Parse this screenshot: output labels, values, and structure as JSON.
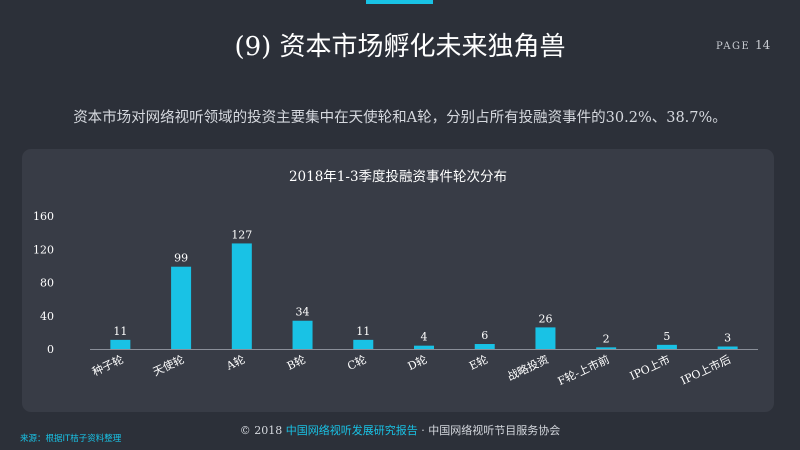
{
  "slide": {
    "title": "(9) 资本市场孵化未来独角兽",
    "page_label": "PAGE",
    "page_number": "14",
    "lead_text": "资本市场对网络视听领域的投资主要集中在天使轮和A轮，分别占所有投融资事件的30.2%、38.7%。"
  },
  "footer": {
    "copyright": "© 2018 ",
    "report_name": "中国网络视听发展研究报告",
    "separator": " · ",
    "org": "中国网络视听节目服务协会",
    "source": "来源：根据IT桔子资料整理"
  },
  "colors": {
    "accent": "#19c2e5",
    "background": "#2c3039",
    "panel": "#383c46"
  },
  "chart_data": {
    "type": "bar",
    "title": "2018年1-3季度投融资事件轮次分布",
    "categories": [
      "种子轮",
      "天使轮",
      "A轮",
      "B轮",
      "C轮",
      "D轮",
      "E轮",
      "战略投资",
      "F轮-上市前",
      "IPO上市",
      "IPO上市后"
    ],
    "values": [
      11,
      99,
      127,
      34,
      11,
      4,
      6,
      26,
      2,
      5,
      3
    ],
    "ylim": [
      0,
      160
    ],
    "yticks": [
      0,
      40,
      80,
      120,
      160
    ],
    "xlabel": "",
    "ylabel": "",
    "grid": false,
    "bar_color": "#19c2e5"
  }
}
